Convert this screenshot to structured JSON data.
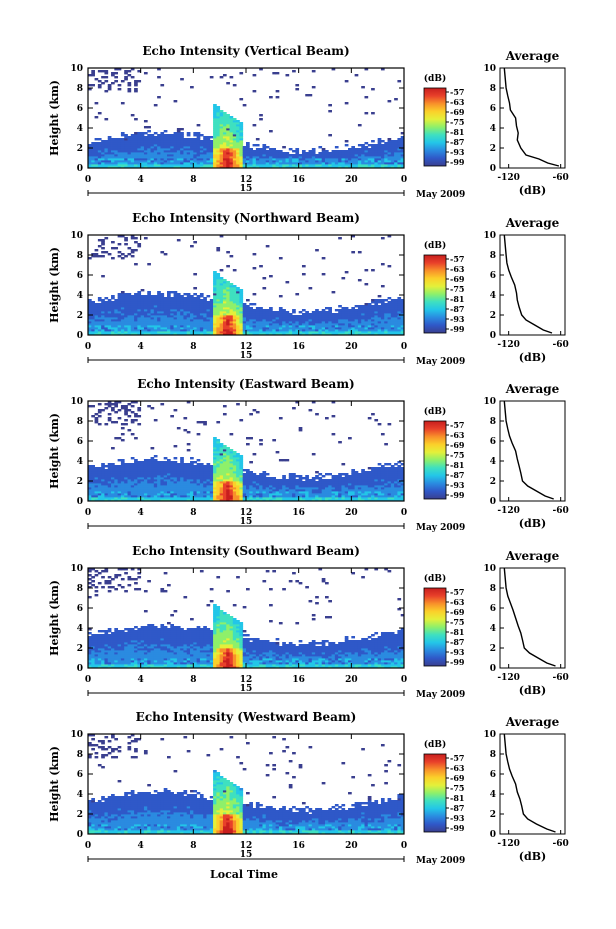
{
  "xlabel": "Local Time",
  "colorbar_unit": "(dB)",
  "colorbar_ticks": [
    "-57",
    "-63",
    "-69",
    "-75",
    "-81",
    "-87",
    "-93",
    "-99"
  ],
  "date_label": "May 2009",
  "date_marker": "15",
  "avg_title": "Average",
  "avg_xlabel": "(dB)",
  "colors": {
    "colormap": [
      "#3a3f8f",
      "#2f58c8",
      "#2a8be0",
      "#23c6e8",
      "#3fe0c0",
      "#8ef06a",
      "#e4f03a",
      "#fbd02a",
      "#f8902a",
      "#e8402a",
      "#c81e1e"
    ]
  },
  "chart_data": [
    {
      "type": "heatmap",
      "title": "Echo Intensity (Vertical Beam)",
      "ylabel": "Height (km)",
      "x_ticks": [
        "0",
        "4",
        "8",
        "12",
        "16",
        "20",
        "0"
      ],
      "y_ticks": [
        "0",
        "2",
        "4",
        "6",
        "8",
        "10"
      ],
      "xlim": [
        0,
        24
      ],
      "ylim": [
        0,
        10
      ],
      "clim": [
        -99,
        -57
      ],
      "average_profile": {
        "title": "Average",
        "xlabel": "(dB)",
        "x_ticks": [
          "-120",
          "-60"
        ],
        "xlim": [
          -130,
          -55
        ],
        "height_km": [
          0.2,
          0.5,
          0.9,
          1.3,
          2,
          2.8,
          3.5,
          4.2,
          5,
          5.8,
          6.5,
          7.2,
          8,
          9,
          10
        ],
        "db": [
          -62,
          -75,
          -85,
          -100,
          -106,
          -110,
          -109,
          -111,
          -112,
          -118,
          -119,
          -121,
          -123,
          -124,
          -125
        ]
      }
    },
    {
      "type": "heatmap",
      "title": "Echo Intensity (Northward Beam)",
      "ylabel": "Height (km)",
      "x_ticks": [
        "0",
        "4",
        "8",
        "12",
        "16",
        "20",
        "0"
      ],
      "y_ticks": [
        "0",
        "2",
        "4",
        "6",
        "8",
        "10"
      ],
      "xlim": [
        0,
        24
      ],
      "ylim": [
        0,
        10
      ],
      "clim": [
        -99,
        -57
      ],
      "average_profile": {
        "title": "Average",
        "xlabel": "(dB)",
        "x_ticks": [
          "-120",
          "-60"
        ],
        "xlim": [
          -130,
          -55
        ],
        "height_km": [
          0.2,
          0.5,
          1,
          1.5,
          2,
          2.8,
          3.5,
          4.2,
          5,
          5.8,
          6.5,
          7.2,
          8,
          9,
          10
        ],
        "db": [
          -70,
          -80,
          -90,
          -100,
          -105,
          -108,
          -110,
          -111,
          -113,
          -117,
          -120,
          -122,
          -123,
          -124,
          -125
        ]
      }
    },
    {
      "type": "heatmap",
      "title": "Echo Intensity (Eastward Beam)",
      "ylabel": "Height (km)",
      "x_ticks": [
        "0",
        "4",
        "8",
        "12",
        "16",
        "20",
        "0"
      ],
      "y_ticks": [
        "0",
        "2",
        "4",
        "6",
        "8",
        "10"
      ],
      "xlim": [
        0,
        24
      ],
      "ylim": [
        0,
        10
      ],
      "clim": [
        -99,
        -57
      ],
      "average_profile": {
        "title": "Average",
        "xlabel": "(dB)",
        "x_ticks": [
          "-120",
          "-60"
        ],
        "xlim": [
          -130,
          -55
        ],
        "height_km": [
          0.2,
          0.5,
          1,
          1.5,
          2,
          2.8,
          3.5,
          4.2,
          5,
          5.8,
          6.5,
          7.2,
          8,
          9,
          10
        ],
        "db": [
          -68,
          -78,
          -88,
          -98,
          -104,
          -106,
          -108,
          -110,
          -112,
          -116,
          -119,
          -121,
          -123,
          -124,
          -125
        ]
      }
    },
    {
      "type": "heatmap",
      "title": "Echo Intensity (Southward Beam)",
      "ylabel": "Height (km)",
      "x_ticks": [
        "0",
        "4",
        "8",
        "12",
        "16",
        "20",
        "0"
      ],
      "y_ticks": [
        "0",
        "2",
        "4",
        "6",
        "8",
        "10"
      ],
      "xlim": [
        0,
        24
      ],
      "ylim": [
        0,
        10
      ],
      "clim": [
        -99,
        -57
      ],
      "average_profile": {
        "title": "Average",
        "xlabel": "(dB)",
        "x_ticks": [
          "-120",
          "-60"
        ],
        "xlim": [
          -130,
          -55
        ],
        "height_km": [
          0.2,
          0.5,
          1,
          1.5,
          2,
          2.8,
          3.5,
          4.2,
          5,
          5.8,
          6.5,
          7.2,
          8,
          9,
          10
        ],
        "db": [
          -66,
          -76,
          -86,
          -96,
          -102,
          -104,
          -106,
          -109,
          -112,
          -115,
          -118,
          -121,
          -123,
          -124,
          -125
        ]
      }
    },
    {
      "type": "heatmap",
      "title": "Echo Intensity (Westward Beam)",
      "ylabel": "Height (km)",
      "x_ticks": [
        "0",
        "4",
        "8",
        "12",
        "16",
        "20",
        "0"
      ],
      "y_ticks": [
        "0",
        "2",
        "4",
        "6",
        "8",
        "10"
      ],
      "xlim": [
        0,
        24
      ],
      "ylim": [
        0,
        10
      ],
      "clim": [
        -99,
        -57
      ],
      "average_profile": {
        "title": "Average",
        "xlabel": "(dB)",
        "x_ticks": [
          "-120",
          "-60"
        ],
        "xlim": [
          -130,
          -55
        ],
        "height_km": [
          0.2,
          0.5,
          1,
          1.5,
          2,
          2.8,
          3.5,
          4.2,
          5,
          5.8,
          6.5,
          7.2,
          8,
          9,
          10
        ],
        "db": [
          -66,
          -76,
          -88,
          -98,
          -103,
          -105,
          -107,
          -110,
          -112,
          -116,
          -119,
          -121,
          -123,
          -124,
          -125
        ]
      }
    }
  ]
}
